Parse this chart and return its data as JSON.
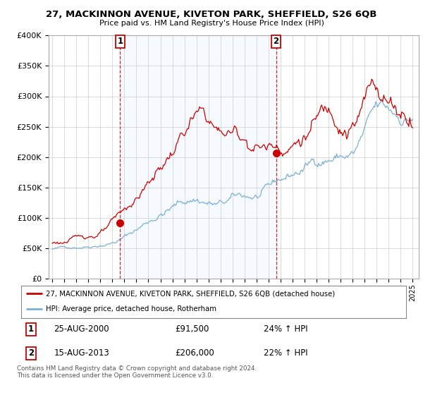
{
  "title": "27, MACKINNON AVENUE, KIVETON PARK, SHEFFIELD, S26 6QB",
  "subtitle": "Price paid vs. HM Land Registry's House Price Index (HPI)",
  "legend_line1": "27, MACKINNON AVENUE, KIVETON PARK, SHEFFIELD, S26 6QB (detached house)",
  "legend_line2": "HPI: Average price, detached house, Rotherham",
  "sale1_date": "25-AUG-2000",
  "sale1_price": "£91,500",
  "sale1_hpi": "24% ↑ HPI",
  "sale2_date": "15-AUG-2013",
  "sale2_price": "£206,000",
  "sale2_hpi": "22% ↑ HPI",
  "copyright": "Contains HM Land Registry data © Crown copyright and database right 2024.\nThis data is licensed under the Open Government Licence v3.0.",
  "line_color_red": "#cc0000",
  "line_color_blue": "#7ab0d4",
  "shade_color": "#ddeeff",
  "background_color": "#ffffff",
  "grid_color": "#cccccc",
  "ylim": [
    0,
    400000
  ],
  "yticks": [
    0,
    50000,
    100000,
    150000,
    200000,
    250000,
    300000,
    350000,
    400000
  ],
  "ytick_labels": [
    "£0",
    "£50K",
    "£100K",
    "£150K",
    "£200K",
    "£250K",
    "£300K",
    "£350K",
    "£400K"
  ],
  "sale1_x": 2000.646,
  "sale1_y": 91500,
  "sale2_x": 2013.621,
  "sale2_y": 206000,
  "xlim_left": 1994.7,
  "xlim_right": 2025.5
}
